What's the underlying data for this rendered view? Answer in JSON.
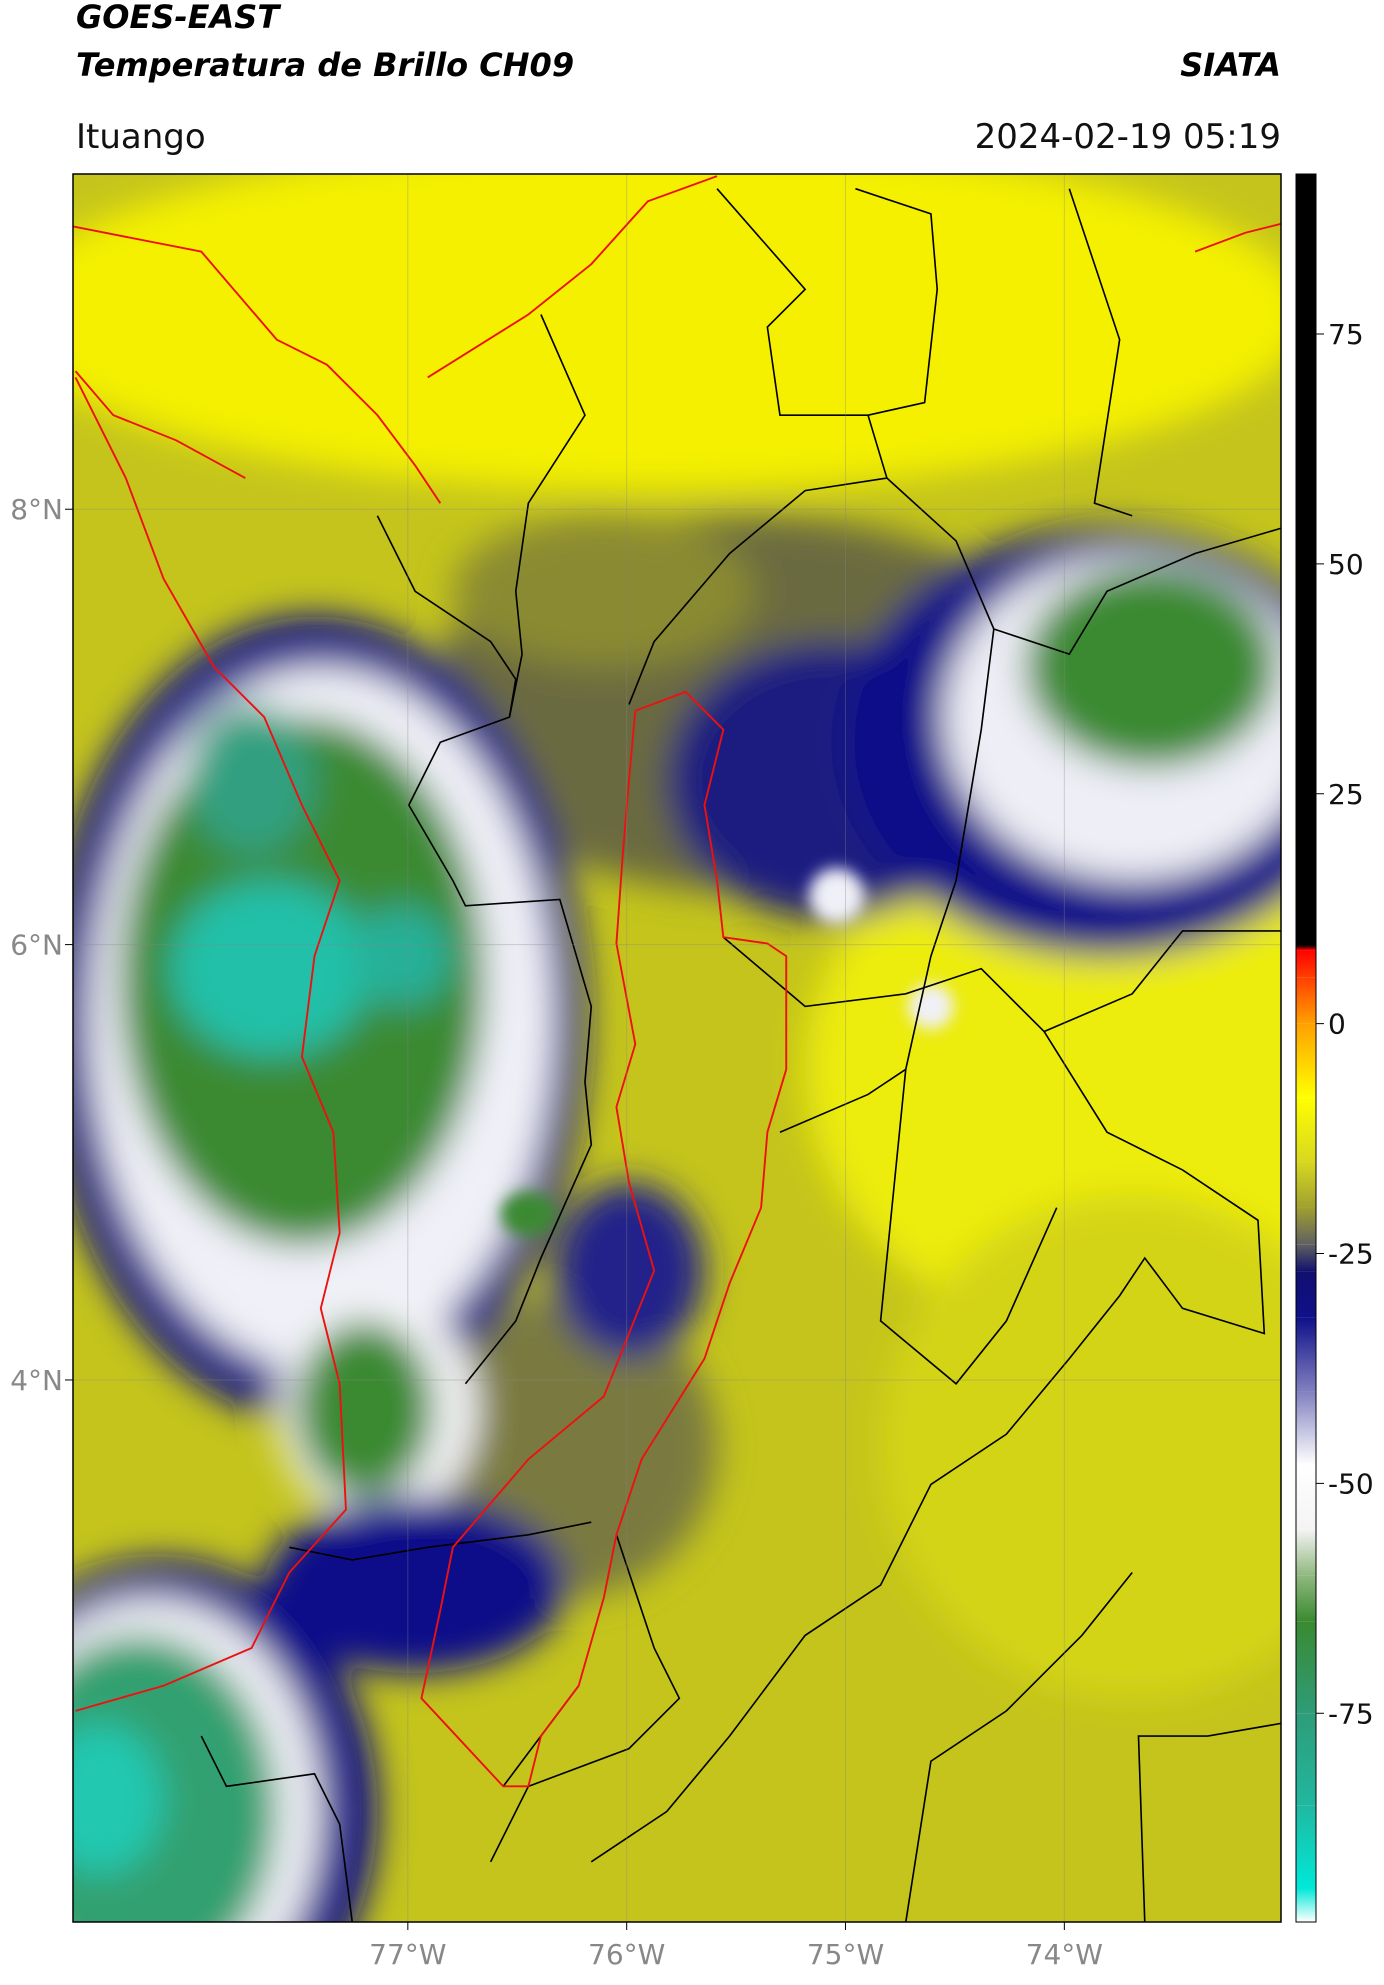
{
  "title": "GOES-EAST",
  "subtitle": "Temperatura de Brillo CH09",
  "brand": "SIATA",
  "location": "Ituango",
  "timestamp": "2024-02-19 05:19",
  "map": {
    "xlim": [
      -78.53,
      -73.01
    ],
    "ylim": [
      1.51,
      9.54
    ],
    "xticks": [
      {
        "value": -77,
        "label": "77°W"
      },
      {
        "value": -76,
        "label": "76°W"
      },
      {
        "value": -75,
        "label": "75°W"
      },
      {
        "value": -74,
        "label": "74°W"
      }
    ],
    "yticks": [
      {
        "value": 4,
        "label": "4°N"
      },
      {
        "value": 6,
        "label": "6°N"
      },
      {
        "value": 8,
        "label": "8°N"
      }
    ],
    "grid": true
  },
  "colorbar": {
    "lim": [
      -97.7,
      92.4
    ],
    "ticks": [
      -75,
      -50,
      -25,
      0,
      25,
      50,
      75
    ],
    "stops": [
      {
        "value": -97.7,
        "color": "#ffffff"
      },
      {
        "value": -94,
        "color": "#00e8d8"
      },
      {
        "value": -85,
        "color": "#20b8a0"
      },
      {
        "value": -75,
        "color": "#2e9c78"
      },
      {
        "value": -65,
        "color": "#3a8a30"
      },
      {
        "value": -60,
        "color": "#90b880"
      },
      {
        "value": -55,
        "color": "#f4f4f4"
      },
      {
        "value": -48,
        "color": "#ffffff"
      },
      {
        "value": -40,
        "color": "#8080c0"
      },
      {
        "value": -32,
        "color": "#10108a"
      },
      {
        "value": -27,
        "color": "#101070"
      },
      {
        "value": -24,
        "color": "#606060"
      },
      {
        "value": -20,
        "color": "#a0a030"
      },
      {
        "value": -15,
        "color": "#d8d820"
      },
      {
        "value": -8,
        "color": "#ffff00"
      },
      {
        "value": 0,
        "color": "#ffa000"
      },
      {
        "value": 5,
        "color": "#ff4000"
      },
      {
        "value": 8,
        "color": "#ff0000"
      },
      {
        "value": 8.5,
        "color": "#000000"
      },
      {
        "value": 92.4,
        "color": "#000000"
      }
    ]
  }
}
